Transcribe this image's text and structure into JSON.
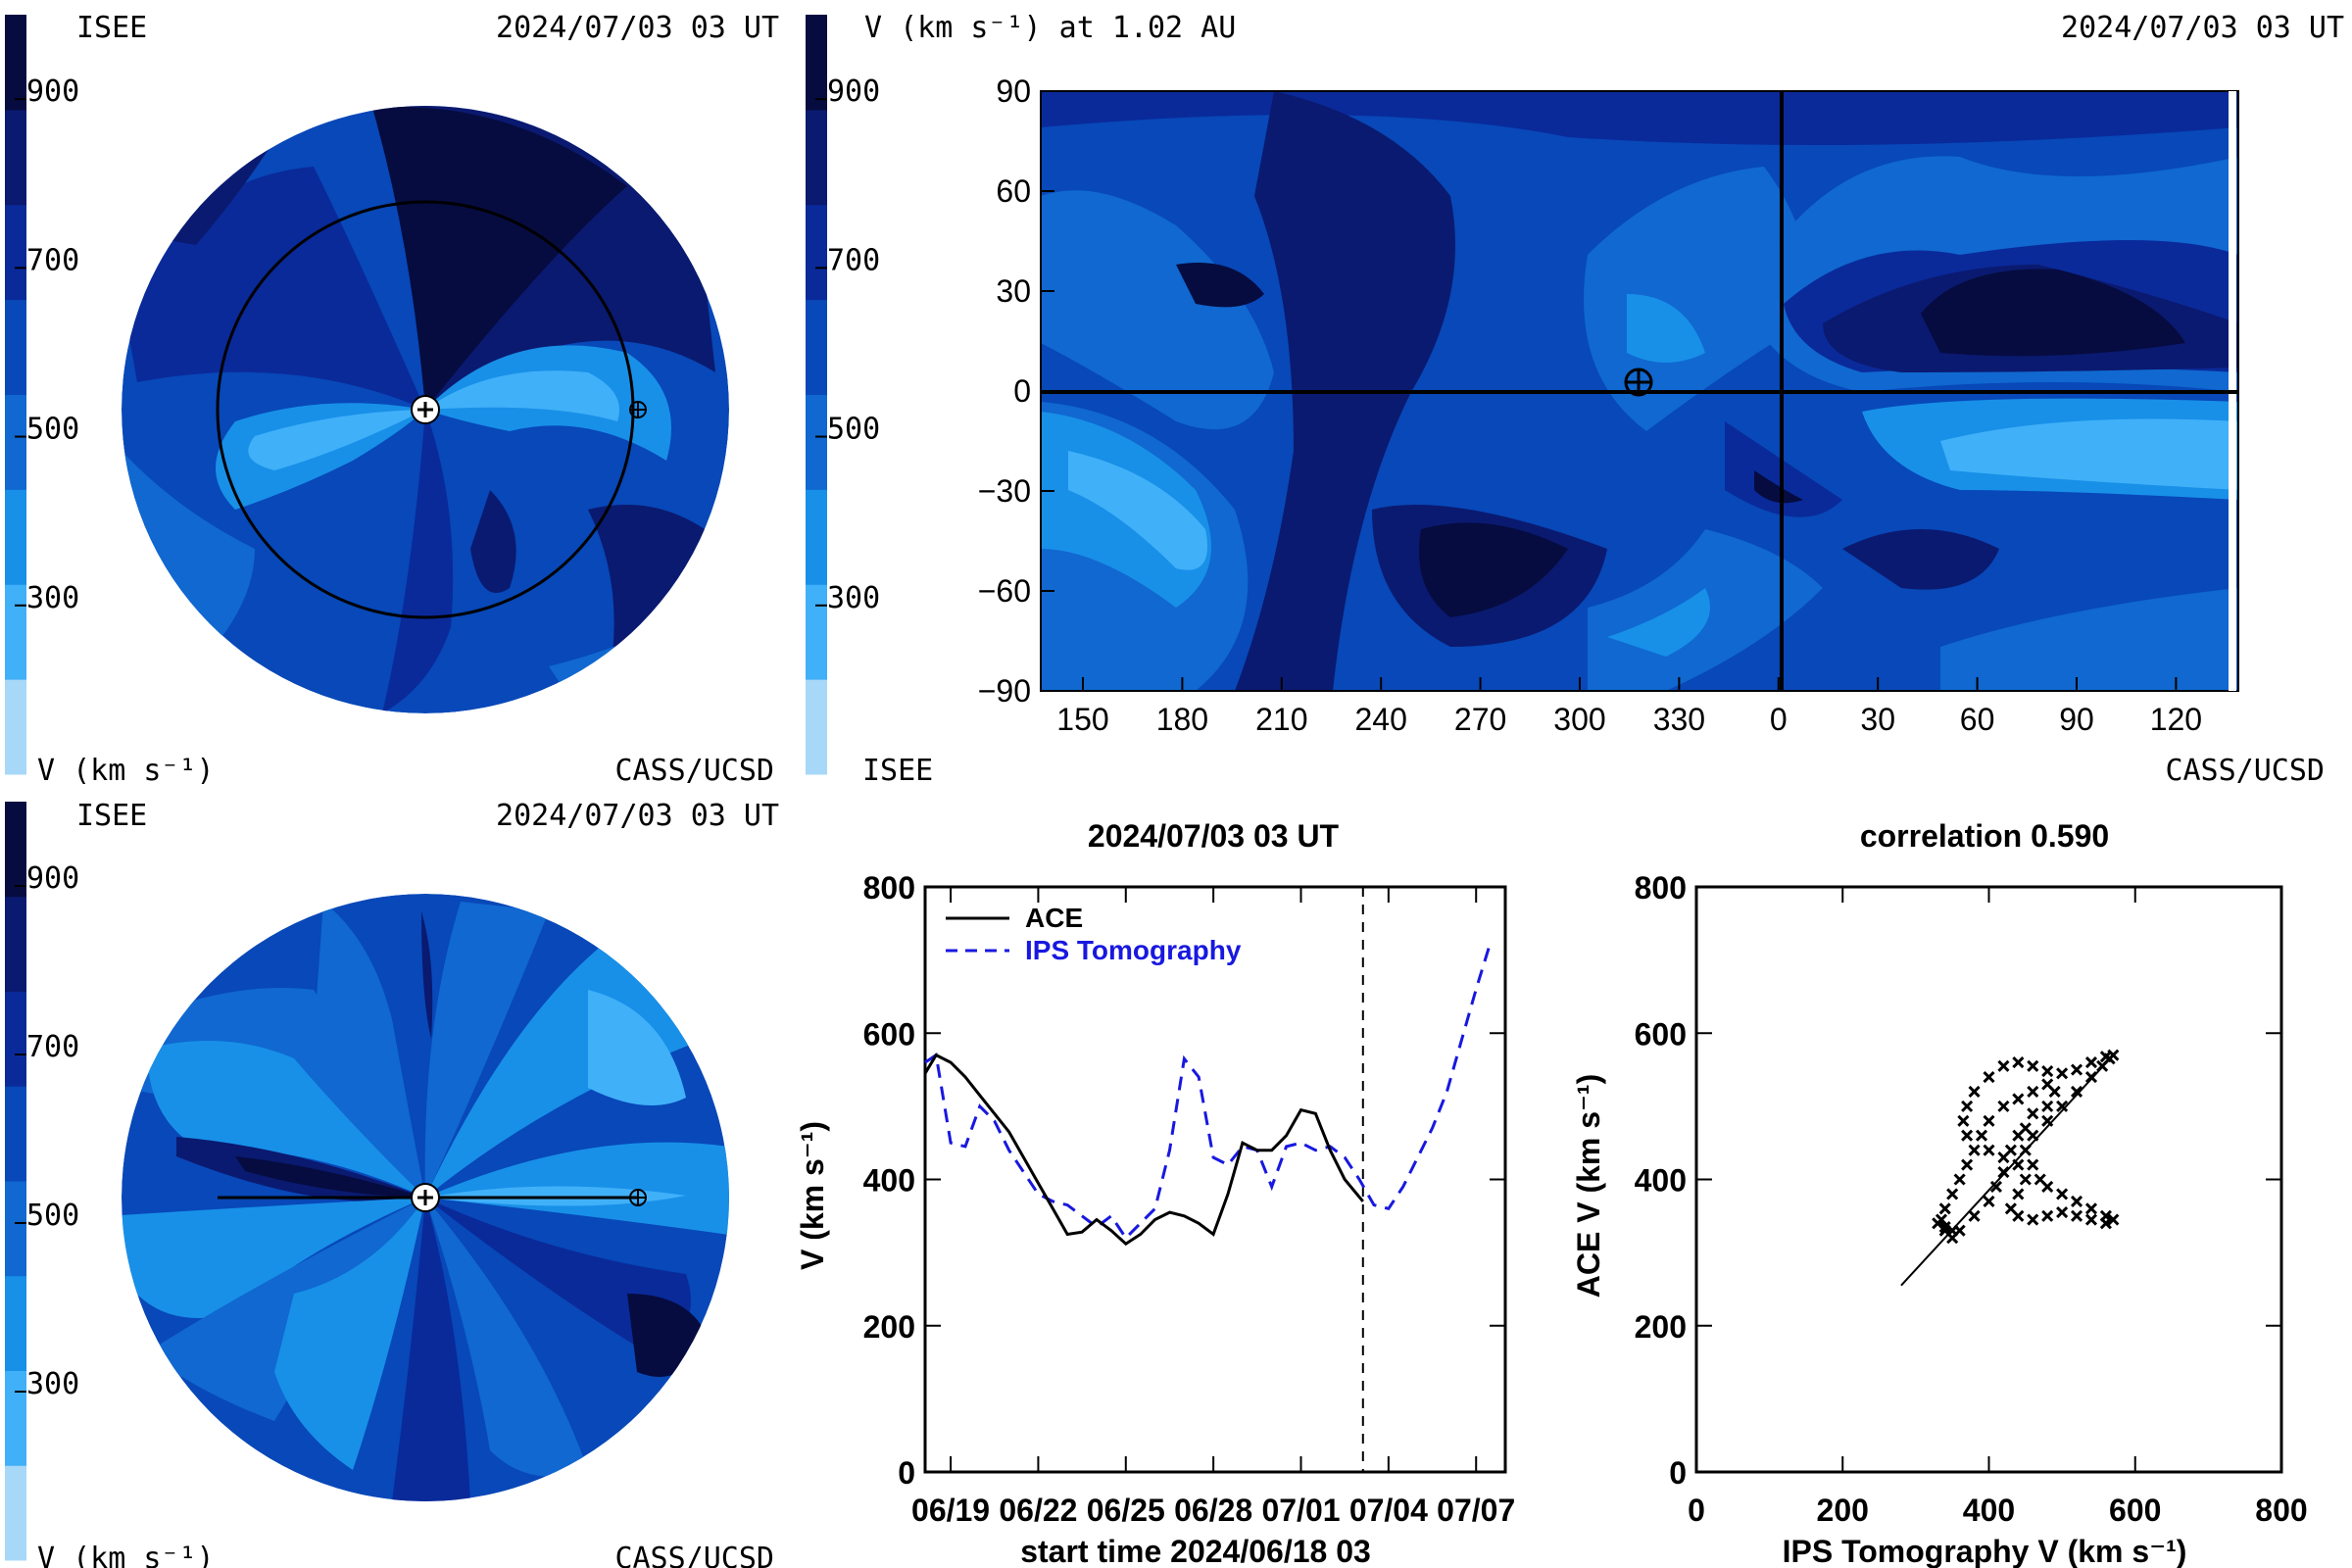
{
  "colors": {
    "levels": [
      "#a8d8f8",
      "#40b0f8",
      "#1890e8",
      "#1068d0",
      "#0848b8",
      "#0a2a9a",
      "#0a1a70",
      "#060c40"
    ],
    "ace": "#000000",
    "ips": "#1818e0"
  },
  "colorbar": {
    "ticks": [
      "900",
      "700",
      "500",
      "300"
    ],
    "tick_values": [
      900,
      700,
      500,
      300
    ],
    "range": [
      100,
      1000
    ]
  },
  "panel_top_left": {
    "org": "ISEE",
    "date": "2024/07/03 03 UT",
    "unit_label": "V (km s⁻¹)",
    "credit": "CASS/UCSD"
  },
  "panel_top_right": {
    "title": "V (km s⁻¹) at 1.02 AU",
    "date": "2024/07/03 03 UT",
    "org": "ISEE",
    "credit": "CASS/UCSD",
    "x_ticks": [
      "150",
      "180",
      "210",
      "240",
      "270",
      "300",
      "330",
      "0",
      "30",
      "60",
      "90",
      "120"
    ],
    "y_ticks": [
      "90",
      "60",
      "30",
      "0",
      "−30",
      "−60",
      "−90"
    ],
    "y_values": [
      90,
      60,
      30,
      0,
      -30,
      -60,
      -90
    ]
  },
  "panel_bottom_left": {
    "org": "ISEE",
    "date": "2024/07/03 03 UT",
    "unit_label": "V (km s⁻¹)",
    "credit": "CASS/UCSD"
  },
  "chart_data": [
    {
      "type": "line",
      "title": "2024/07/03 03 UT",
      "xlabel": "start time 2024/06/18 03",
      "ylabel": "V (km s⁻¹)",
      "x_tick_labels": [
        "06/19",
        "06/22",
        "06/25",
        "06/28",
        "07/01",
        "07/04",
        "07/07"
      ],
      "y_ticks": [
        0,
        200,
        400,
        600,
        800
      ],
      "ylim": [
        0,
        800
      ],
      "xlim": [
        "2024/06/18 03",
        "2024/07/08"
      ],
      "marker_line": "2024/07/03 03",
      "legend_position": "top-left",
      "series": [
        {
          "name": "ACE",
          "x": [
            "06/18 03",
            "06/18 12",
            "06/19 00",
            "06/19 12",
            "06/20 00",
            "06/20 12",
            "06/21 00",
            "06/21 12",
            "06/22 00",
            "06/22 12",
            "06/23 00",
            "06/23 12",
            "06/24 00",
            "06/24 12",
            "06/25 00",
            "06/25 12",
            "06/26 00",
            "06/26 12",
            "06/27 00",
            "06/27 12",
            "06/28 00",
            "06/28 12",
            "06/29 00",
            "06/29 12",
            "06/30 00",
            "06/30 12",
            "07/01 00",
            "07/01 12",
            "07/02 00",
            "07/02 12",
            "07/03 03"
          ],
          "values": [
            545,
            570,
            560,
            540,
            515,
            490,
            465,
            430,
            395,
            360,
            325,
            328,
            345,
            330,
            312,
            325,
            345,
            355,
            350,
            340,
            325,
            380,
            450,
            440,
            440,
            460,
            495,
            490,
            440,
            400,
            370
          ]
        },
        {
          "name": "IPS Tomography",
          "x": [
            "06/18 03",
            "06/18 12",
            "06/19 00",
            "06/19 12",
            "06/20 00",
            "06/20 12",
            "06/21 00",
            "06/21 12",
            "06/22 00",
            "06/22 12",
            "06/23 00",
            "06/23 12",
            "06/24 00",
            "06/24 12",
            "06/25 00",
            "06/25 12",
            "06/26 00",
            "06/26 12",
            "06/27 00",
            "06/27 12",
            "06/28 00",
            "06/28 12",
            "06/29 00",
            "06/29 12",
            "06/30 00",
            "06/30 12",
            "07/01 00",
            "07/01 12",
            "07/02 00",
            "07/02 12",
            "07/03 00",
            "07/03 12",
            "07/04 00",
            "07/04 12",
            "07/05 00",
            "07/05 12",
            "07/06 00",
            "07/06 12",
            "07/07 00",
            "07/07 12"
          ],
          "values": [
            560,
            570,
            450,
            445,
            500,
            480,
            440,
            410,
            380,
            370,
            365,
            350,
            335,
            350,
            320,
            340,
            360,
            440,
            565,
            540,
            430,
            420,
            445,
            440,
            390,
            445,
            450,
            440,
            445,
            430,
            400,
            365,
            360,
            390,
            430,
            470,
            520,
            590,
            660,
            725
          ]
        }
      ]
    },
    {
      "type": "scatter",
      "title": "correlation 0.590",
      "xlabel": "IPS Tomography V (km s⁻¹)",
      "ylabel": "ACE V (km s⁻¹)",
      "x_ticks": [
        0,
        200,
        400,
        600,
        800
      ],
      "y_ticks": [
        0,
        200,
        400,
        600,
        800
      ],
      "xlim": [
        0,
        800
      ],
      "ylim": [
        0,
        800
      ],
      "correlation": 0.59,
      "points": [
        [
          330,
          340
        ],
        [
          340,
          330
        ],
        [
          350,
          320
        ],
        [
          360,
          330
        ],
        [
          380,
          350
        ],
        [
          400,
          370
        ],
        [
          410,
          390
        ],
        [
          420,
          410
        ],
        [
          430,
          440
        ],
        [
          440,
          460
        ],
        [
          450,
          440
        ],
        [
          460,
          420
        ],
        [
          470,
          400
        ],
        [
          480,
          390
        ],
        [
          500,
          380
        ],
        [
          520,
          370
        ],
        [
          540,
          360
        ],
        [
          560,
          350
        ],
        [
          570,
          345
        ],
        [
          560,
          340
        ],
        [
          540,
          345
        ],
        [
          520,
          350
        ],
        [
          500,
          355
        ],
        [
          480,
          350
        ],
        [
          460,
          345
        ],
        [
          440,
          350
        ],
        [
          430,
          360
        ],
        [
          440,
          380
        ],
        [
          450,
          400
        ],
        [
          440,
          420
        ],
        [
          420,
          430
        ],
        [
          400,
          440
        ],
        [
          390,
          460
        ],
        [
          400,
          480
        ],
        [
          420,
          500
        ],
        [
          440,
          510
        ],
        [
          460,
          520
        ],
        [
          480,
          530
        ],
        [
          490,
          520
        ],
        [
          480,
          500
        ],
        [
          460,
          490
        ],
        [
          450,
          470
        ],
        [
          460,
          460
        ],
        [
          480,
          480
        ],
        [
          500,
          500
        ],
        [
          520,
          520
        ],
        [
          540,
          540
        ],
        [
          555,
          555
        ],
        [
          565,
          565
        ],
        [
          570,
          570
        ],
        [
          560,
          568
        ],
        [
          540,
          560
        ],
        [
          520,
          550
        ],
        [
          500,
          545
        ],
        [
          480,
          548
        ],
        [
          460,
          555
        ],
        [
          440,
          560
        ],
        [
          420,
          555
        ],
        [
          400,
          540
        ],
        [
          380,
          520
        ],
        [
          370,
          500
        ],
        [
          365,
          480
        ],
        [
          370,
          460
        ],
        [
          380,
          440
        ],
        [
          370,
          420
        ],
        [
          360,
          400
        ],
        [
          350,
          380
        ],
        [
          340,
          360
        ],
        [
          335,
          345
        ],
        [
          340,
          335
        ],
        [
          350,
          330
        ]
      ],
      "fit_line": {
        "x": [
          280,
          570
        ],
        "y": [
          255,
          570
        ]
      }
    }
  ]
}
